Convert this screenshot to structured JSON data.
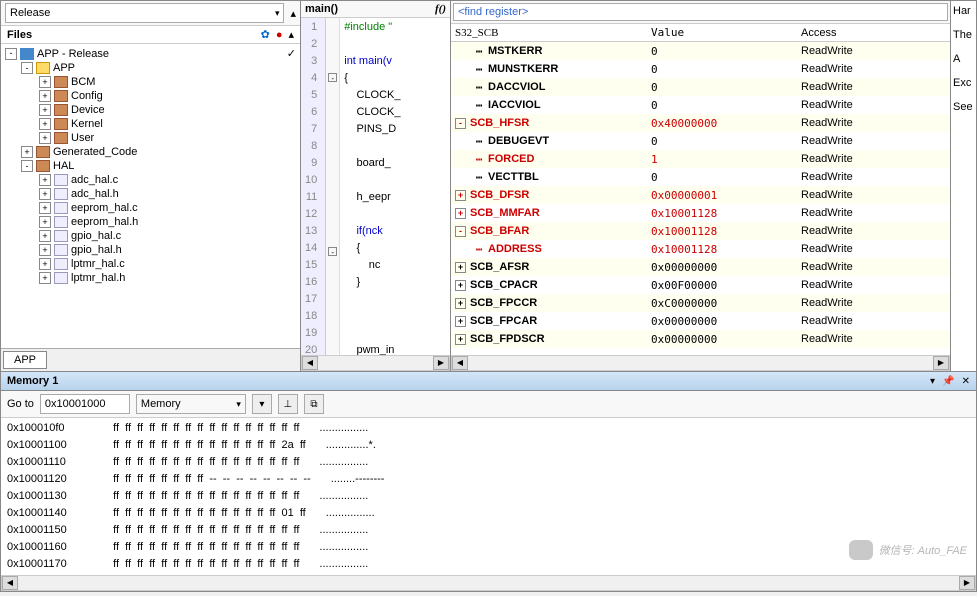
{
  "files": {
    "mode": "Release",
    "title": "Files",
    "project": "APP - Release",
    "tab": "APP",
    "tree": [
      {
        "depth": 0,
        "exp": "-",
        "icon": "hex",
        "label": "APP - Release",
        "check": true
      },
      {
        "depth": 1,
        "exp": "-",
        "icon": "fy",
        "label": "APP"
      },
      {
        "depth": 2,
        "exp": "+",
        "icon": "fb",
        "label": "BCM"
      },
      {
        "depth": 2,
        "exp": "+",
        "icon": "fb",
        "label": "Config"
      },
      {
        "depth": 2,
        "exp": "+",
        "icon": "fb",
        "label": "Device"
      },
      {
        "depth": 2,
        "exp": "+",
        "icon": "fb",
        "label": "Kernel"
      },
      {
        "depth": 2,
        "exp": "+",
        "icon": "fb",
        "label": "User"
      },
      {
        "depth": 1,
        "exp": "+",
        "icon": "fb",
        "label": "Generated_Code"
      },
      {
        "depth": 1,
        "exp": "-",
        "icon": "fb",
        "label": "HAL"
      },
      {
        "depth": 2,
        "exp": "+",
        "icon": "fc",
        "label": "adc_hal.c"
      },
      {
        "depth": 2,
        "exp": "+",
        "icon": "fc",
        "label": "adc_hal.h"
      },
      {
        "depth": 2,
        "exp": "+",
        "icon": "fc",
        "label": "eeprom_hal.c"
      },
      {
        "depth": 2,
        "exp": "+",
        "icon": "fc",
        "label": "eeprom_hal.h"
      },
      {
        "depth": 2,
        "exp": "+",
        "icon": "fc",
        "label": "gpio_hal.c"
      },
      {
        "depth": 2,
        "exp": "+",
        "icon": "fc",
        "label": "gpio_hal.h"
      },
      {
        "depth": 2,
        "exp": "+",
        "icon": "fc",
        "label": "lptmr_hal.c"
      },
      {
        "depth": 2,
        "exp": "+",
        "icon": "fc",
        "label": "lptmr_hal.h"
      }
    ]
  },
  "editor": {
    "title": "main()",
    "start_line": 1,
    "lines": [
      {
        "t": "#include \"",
        "cls": "pp"
      },
      {
        "t": "",
        "cls": ""
      },
      {
        "t": "int main(v",
        "cls": "kw"
      },
      {
        "t": "{",
        "cls": "",
        "fold": "-"
      },
      {
        "t": "    CLOCK_",
        "cls": ""
      },
      {
        "t": "    CLOCK_",
        "cls": ""
      },
      {
        "t": "    PINS_D",
        "cls": ""
      },
      {
        "t": "",
        "cls": ""
      },
      {
        "t": "    board_",
        "cls": ""
      },
      {
        "t": "",
        "cls": ""
      },
      {
        "t": "    h_eepr",
        "cls": ""
      },
      {
        "t": "",
        "cls": ""
      },
      {
        "t": "    if(nck",
        "cls": "kw"
      },
      {
        "t": "    {",
        "cls": "",
        "fold": "-"
      },
      {
        "t": "        nc",
        "cls": ""
      },
      {
        "t": "    }",
        "cls": ""
      },
      {
        "t": "",
        "cls": ""
      },
      {
        "t": "",
        "cls": ""
      },
      {
        "t": "",
        "cls": ""
      },
      {
        "t": "    pwm_in",
        "cls": ""
      }
    ]
  },
  "registers": {
    "search": "<find register>",
    "columns": [
      "S32_SCB",
      "Value",
      "Access"
    ],
    "rows": [
      {
        "exp": "",
        "dash": true,
        "name": "MSTKERR",
        "val": "0",
        "acc": "ReadWrite"
      },
      {
        "exp": "",
        "dash": true,
        "name": "MUNSTKERR",
        "val": "0",
        "acc": "ReadWrite"
      },
      {
        "exp": "",
        "dash": true,
        "name": "DACCVIOL",
        "val": "0",
        "acc": "ReadWrite"
      },
      {
        "exp": "",
        "dash": true,
        "name": "IACCVIOL",
        "val": "0",
        "acc": "ReadWrite"
      },
      {
        "exp": "-",
        "name": "SCB_HFSR",
        "val": "0x40000000",
        "acc": "ReadWrite",
        "changed": true
      },
      {
        "exp": "",
        "dash": true,
        "name": "DEBUGEVT",
        "val": "0",
        "acc": "ReadWrite"
      },
      {
        "exp": "",
        "dash": true,
        "name": "FORCED",
        "val": "1",
        "acc": "ReadWrite",
        "changed": true
      },
      {
        "exp": "",
        "dash": true,
        "name": "VECTTBL",
        "val": "0",
        "acc": "ReadWrite"
      },
      {
        "exp": "+",
        "name": "SCB_DFSR",
        "val": "0x00000001",
        "acc": "ReadWrite",
        "changed": true
      },
      {
        "exp": "+",
        "name": "SCB_MMFAR",
        "val": "0x10001128",
        "acc": "ReadWrite",
        "changed": true
      },
      {
        "exp": "-",
        "name": "SCB_BFAR",
        "val": "0x10001128",
        "acc": "ReadWrite",
        "changed": true
      },
      {
        "exp": "",
        "dash": true,
        "name": "ADDRESS",
        "val": "0x10001128",
        "acc": "ReadWrite",
        "changed": true
      },
      {
        "exp": "+",
        "name": "SCB_AFSR",
        "val": "0x00000000",
        "acc": "ReadWrite"
      },
      {
        "exp": "+",
        "name": "SCB_CPACR",
        "val": "0x00F00000",
        "acc": "ReadWrite"
      },
      {
        "exp": "+",
        "name": "SCB_FPCCR",
        "val": "0xC0000000",
        "acc": "ReadWrite"
      },
      {
        "exp": "+",
        "name": "SCB_FPCAR",
        "val": "0x00000000",
        "acc": "ReadWrite"
      },
      {
        "exp": "+",
        "name": "SCB_FPDSCR",
        "val": "0x00000000",
        "acc": "ReadWrite"
      }
    ]
  },
  "sidestrip": [
    "Har",
    "The",
    "  A",
    "Exc",
    "See"
  ],
  "memory": {
    "title": "Memory 1",
    "goto_label": "Go to",
    "goto_value": "0x10001000",
    "type": "Memory",
    "rows": [
      {
        "a": "0x100010f0",
        "h": "ff  ff  ff  ff  ff  ff  ff  ff  ff  ff  ff  ff  ff  ff  ff  ff",
        "s": "................"
      },
      {
        "a": "0x10001100",
        "h": "ff  ff  ff  ff  ff  ff  ff  ff  ff  ff  ff  ff  ff  ff  2a  ff",
        "s": "..............*."
      },
      {
        "a": "0x10001110",
        "h": "ff  ff  ff  ff  ff  ff  ff  ff  ff  ff  ff  ff  ff  ff  ff  ff",
        "s": "................"
      },
      {
        "a": "0x10001120",
        "h": "ff  ff  ff  ff  ff  ff  ff  ff  --  --  --  --  --  --  --  --",
        "s": "........--------"
      },
      {
        "a": "0x10001130",
        "h": "ff  ff  ff  ff  ff  ff  ff  ff  ff  ff  ff  ff  ff  ff  ff  ff",
        "s": "................"
      },
      {
        "a": "0x10001140",
        "h": "ff  ff  ff  ff  ff  ff  ff  ff  ff  ff  ff  ff  ff  ff  01  ff",
        "s": "................"
      },
      {
        "a": "0x10001150",
        "h": "ff  ff  ff  ff  ff  ff  ff  ff  ff  ff  ff  ff  ff  ff  ff  ff",
        "s": "................"
      },
      {
        "a": "0x10001160",
        "h": "ff  ff  ff  ff  ff  ff  ff  ff  ff  ff  ff  ff  ff  ff  ff  ff",
        "s": "................"
      },
      {
        "a": "0x10001170",
        "h": "ff  ff  ff  ff  ff  ff  ff  ff  ff  ff  ff  ff  ff  ff  ff  ff",
        "s": "................"
      }
    ]
  },
  "watermark": "微信号: Auto_FAE"
}
